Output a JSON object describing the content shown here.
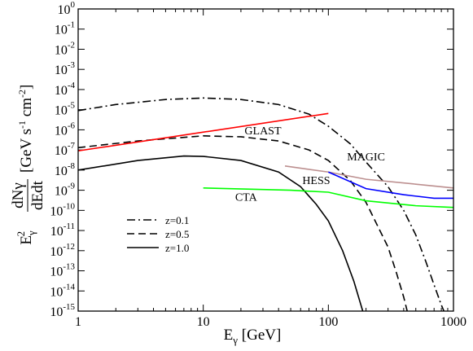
{
  "chart_data": {
    "type": "line",
    "title": "",
    "xlabel": {
      "base": "E",
      "sub": "γ",
      "rest": " [GeV]"
    },
    "ylabel": {
      "prefix_base": "E",
      "prefix_sub": "γ",
      "prefix_sup": "2",
      "frac_num": "dNγ",
      "frac_den": "dEdt",
      "units": "[GeV s",
      "units_sup1": "-1",
      "units_mid": " cm",
      "units_sup2": "-2",
      "units_end": "]"
    },
    "xscale": "log",
    "yscale": "log",
    "xlim": [
      1,
      1000
    ],
    "ylim": [
      1e-15,
      1
    ],
    "x_ticks": [
      {
        "value": 1,
        "label": "1"
      },
      {
        "value": 10,
        "label": "10"
      },
      {
        "value": 100,
        "label": "100"
      },
      {
        "value": 1000,
        "label": "1000"
      }
    ],
    "y_ticks": [
      {
        "exp": 0,
        "base": "10",
        "sup": "0"
      },
      {
        "exp": -1,
        "base": "10",
        "sup": "-1"
      },
      {
        "exp": -2,
        "base": "10",
        "sup": "-2"
      },
      {
        "exp": -3,
        "base": "10",
        "sup": "-3"
      },
      {
        "exp": -4,
        "base": "10",
        "sup": "-4"
      },
      {
        "exp": -5,
        "base": "10",
        "sup": "-5"
      },
      {
        "exp": -6,
        "base": "10",
        "sup": "-6"
      },
      {
        "exp": -7,
        "base": "10",
        "sup": "-7"
      },
      {
        "exp": -8,
        "base": "10",
        "sup": "-8"
      },
      {
        "exp": -9,
        "base": "10",
        "sup": "-9"
      },
      {
        "exp": -10,
        "base": "10",
        "sup": "-10"
      },
      {
        "exp": -11,
        "base": "10",
        "sup": "-11"
      },
      {
        "exp": -12,
        "base": "10",
        "sup": "-12"
      },
      {
        "exp": -13,
        "base": "10",
        "sup": "-13"
      },
      {
        "exp": -14,
        "base": "10",
        "sup": "-14"
      },
      {
        "exp": -15,
        "base": "10",
        "sup": "-15"
      }
    ],
    "grid": false,
    "legend_position": "lower-left",
    "series": [
      {
        "name": "z=0.1",
        "legend": true,
        "color": "#000000",
        "style": "dashdot",
        "points": [
          [
            1,
            9e-06
          ],
          [
            2,
            1.8e-05
          ],
          [
            5,
            3.2e-05
          ],
          [
            10,
            3.8e-05
          ],
          [
            20,
            3.2e-05
          ],
          [
            40,
            1.8e-05
          ],
          [
            70,
            6e-06
          ],
          [
            100,
            1.5e-06
          ],
          [
            150,
            2e-07
          ],
          [
            200,
            2.5e-08
          ],
          [
            300,
            1.5e-09
          ],
          [
            400,
            1e-10
          ],
          [
            500,
            6e-12
          ],
          [
            600,
            3e-13
          ],
          [
            700,
            2e-14
          ],
          [
            800,
            2e-15
          ],
          [
            850,
            8e-16
          ]
        ]
      },
      {
        "name": "z=0.5",
        "legend": true,
        "color": "#000000",
        "style": "dashed",
        "points": [
          [
            1,
            1.3e-07
          ],
          [
            3,
            2.8e-07
          ],
          [
            10,
            5e-07
          ],
          [
            20,
            4.5e-07
          ],
          [
            40,
            2.8e-07
          ],
          [
            70,
            1e-07
          ],
          [
            100,
            3e-08
          ],
          [
            150,
            3e-09
          ],
          [
            200,
            2.5e-10
          ],
          [
            300,
            1.5e-12
          ],
          [
            350,
            8e-14
          ],
          [
            400,
            5e-15
          ],
          [
            430,
            8e-16
          ]
        ]
      },
      {
        "name": "z=1.0",
        "legend": true,
        "color": "#000000",
        "style": "solid",
        "points": [
          [
            1,
            1e-08
          ],
          [
            3,
            3e-08
          ],
          [
            7,
            5e-08
          ],
          [
            10,
            4.8e-08
          ],
          [
            20,
            3e-08
          ],
          [
            40,
            8e-09
          ],
          [
            60,
            1.5e-09
          ],
          [
            80,
            2e-10
          ],
          [
            100,
            3e-11
          ],
          [
            130,
            1e-12
          ],
          [
            160,
            3e-14
          ],
          [
            190,
            8e-16
          ]
        ]
      },
      {
        "name": "GLAST",
        "legend": false,
        "color": "#ff0000",
        "style": "solid",
        "points": [
          [
            1,
            9e-08
          ],
          [
            100,
            6.5e-06
          ]
        ]
      },
      {
        "name": "MAGIC",
        "legend": false,
        "color": "#bc8f8f",
        "style": "solid",
        "points": [
          [
            45,
            1.6e-08
          ],
          [
            100,
            8e-09
          ],
          [
            200,
            3.5e-09
          ],
          [
            500,
            2e-09
          ],
          [
            1000,
            1.3e-09
          ]
        ]
      },
      {
        "name": "HESS",
        "legend": false,
        "color": "#0000ff",
        "style": "solid",
        "points": [
          [
            100,
            8e-09
          ],
          [
            200,
            1.2e-09
          ],
          [
            400,
            6e-10
          ],
          [
            700,
            4e-10
          ],
          [
            1000,
            4e-10
          ]
        ]
      },
      {
        "name": "CTA",
        "legend": false,
        "color": "#00ff00",
        "style": "solid",
        "points": [
          [
            10,
            1.3e-09
          ],
          [
            50,
            1e-09
          ],
          [
            100,
            8e-10
          ],
          [
            200,
            3e-10
          ],
          [
            500,
            1.7e-10
          ],
          [
            1000,
            1.4e-10
          ]
        ]
      }
    ],
    "annotations": [
      {
        "text": "GLAST",
        "x": 30,
        "y": 6e-07
      },
      {
        "text": "MAGIC",
        "x": 200,
        "y": 3e-08
      },
      {
        "text": "HESS",
        "x": 80,
        "y": 2e-09
      },
      {
        "text": "CTA",
        "x": 22,
        "y": 3e-10
      }
    ]
  }
}
